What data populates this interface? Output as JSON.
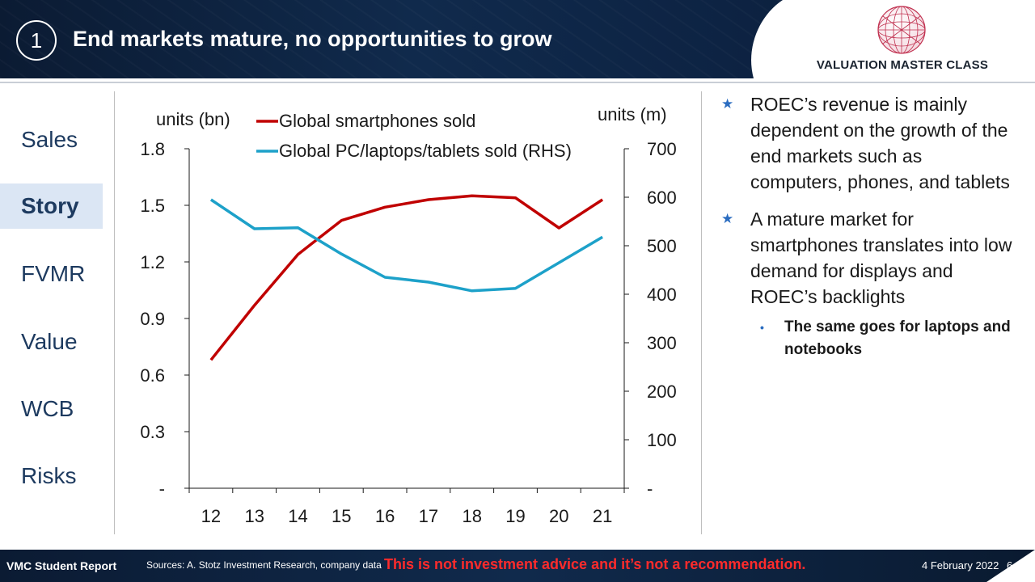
{
  "header": {
    "number": "1",
    "title": "End markets mature, no opportunities to grow",
    "brand": "VALUATION MASTER CLASS"
  },
  "sidebar": {
    "items": [
      {
        "label": "Sales",
        "active": false
      },
      {
        "label": "Story",
        "active": true
      },
      {
        "label": "FVMR",
        "active": false
      },
      {
        "label": "Value",
        "active": false
      },
      {
        "label": "WCB",
        "active": false
      },
      {
        "label": "Risks",
        "active": false
      }
    ]
  },
  "chart_data": {
    "type": "line",
    "x": [
      "12",
      "13",
      "14",
      "15",
      "16",
      "17",
      "18",
      "19",
      "20",
      "21"
    ],
    "left_axis_label": "units (bn)",
    "right_axis_label": "units (m)",
    "left_ticks": [
      "-",
      "0.3",
      "0.6",
      "0.9",
      "1.2",
      "1.5",
      "1.8"
    ],
    "right_ticks": [
      "-",
      "100",
      "200",
      "300",
      "400",
      "500",
      "600",
      "700"
    ],
    "ylim_left": [
      0,
      1.8
    ],
    "ylim_right": [
      0,
      700
    ],
    "legend_position": "top",
    "series": [
      {
        "name": "Global smartphones sold",
        "axis": "left",
        "color": "#c00000",
        "values": [
          0.68,
          0.97,
          1.24,
          1.42,
          1.49,
          1.53,
          1.55,
          1.54,
          1.38,
          1.53
        ]
      },
      {
        "name": "Global PC/laptops/tablets sold (RHS)",
        "axis": "right",
        "color": "#1da1c9",
        "values": [
          595,
          535,
          537,
          483,
          435,
          425,
          407,
          412,
          465,
          518
        ]
      }
    ]
  },
  "bullets": {
    "items": [
      "ROEC’s revenue is mainly dependent on the growth of the end markets such as computers, phones, and tablets",
      "A mature market for smartphones translates into low demand for displays and ROEC’s backlights"
    ],
    "sub_item": "The same goes for laptops and notebooks"
  },
  "footer": {
    "left": "VMC Student Report",
    "sources": "Sources: A. Stotz Investment Research, company data",
    "warning": "This is not investment advice and it’s not a recommendation.",
    "date": "4 February 2022",
    "page": "6"
  }
}
